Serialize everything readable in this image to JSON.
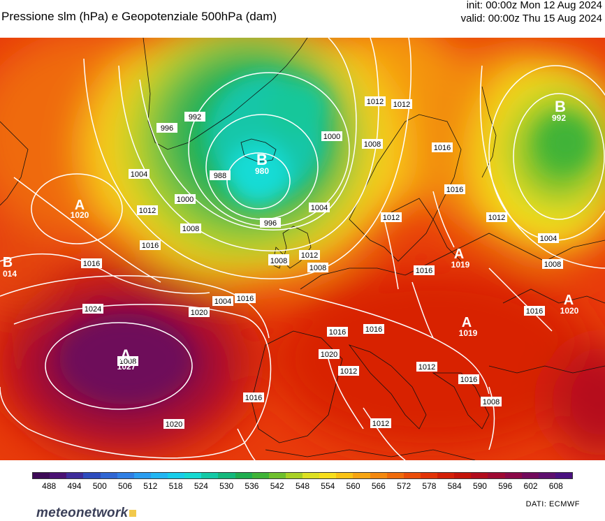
{
  "header": {
    "title": "Pressione slm (hPa) e Geopotenziale 500hPa (dam)",
    "init": "init: 00:00z Mon 12 Aug 2024",
    "valid": "valid: 00:00z Thu 15 Aug 2024"
  },
  "map": {
    "pressure_centers": [
      {
        "type": "A",
        "value": "1020"
      },
      {
        "type": "B",
        "value": "014"
      },
      {
        "type": "A",
        "value": "1027"
      },
      {
        "type": "B",
        "value": "980"
      },
      {
        "type": "B",
        "value": "992"
      },
      {
        "type": "A",
        "value": "1019"
      },
      {
        "type": "A",
        "value": "1019"
      },
      {
        "type": "A",
        "value": "1020"
      }
    ],
    "isobar_labels": [
      "1012",
      "1008",
      "1012",
      "1016",
      "1004",
      "1008",
      "1016",
      "1016",
      "1016",
      "1012",
      "1004",
      "1008",
      "996",
      "992",
      "988",
      "1000",
      "1008",
      "996",
      "1004",
      "1000",
      "1008",
      "1012",
      "1008",
      "1016",
      "1012",
      "1016",
      "1004",
      "1008",
      "1012",
      "1016",
      "1016",
      "1016",
      "1020",
      "1024",
      "1020",
      "1016",
      "1012",
      "1020",
      "1012",
      "1016",
      "1012",
      "1008"
    ]
  },
  "colorbar": {
    "colors": [
      "#3d0a56",
      "#4a1173",
      "#3e2c9a",
      "#2e4cbd",
      "#2f66d3",
      "#2f7fe4",
      "#2a9df0",
      "#22b6f2",
      "#17cde9",
      "#15d9d1",
      "#13c9a6",
      "#14b87c",
      "#1fad4f",
      "#3fb337",
      "#6fc02d",
      "#a8d025",
      "#dde022",
      "#f7de1c",
      "#f9c215",
      "#f7a512",
      "#f3880e",
      "#ef6b0b",
      "#ea4d09",
      "#e23307",
      "#d31f07",
      "#c31309",
      "#b10c1c",
      "#9e0932",
      "#8a0847",
      "#720a5b",
      "#5e0f6e",
      "#4a1180"
    ],
    "ticks": [
      "488",
      "494",
      "500",
      "506",
      "512",
      "518",
      "524",
      "530",
      "536",
      "542",
      "548",
      "554",
      "560",
      "566",
      "572",
      "578",
      "584",
      "590",
      "596",
      "602",
      "608"
    ]
  },
  "footer": {
    "logo": "meteonetwork",
    "source": "DATI:  ECMWF"
  }
}
